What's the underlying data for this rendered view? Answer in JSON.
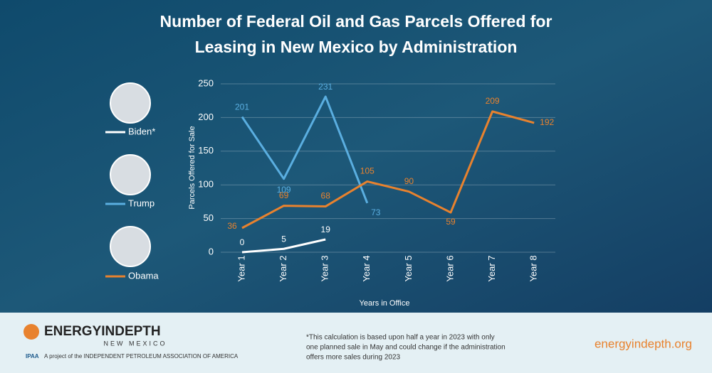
{
  "chart_data": {
    "type": "line",
    "title": "Number of Federal Oil and Gas Parcels Offered for Leasing in New Mexico by Administration",
    "x_label": "Years in Office",
    "y_label": "Parcels Offered for Sale",
    "categories": [
      "Year 1",
      "Year 2",
      "Year 3",
      "Year 4",
      "Year 5",
      "Year 6",
      "Year 7",
      "Year 8"
    ],
    "series": [
      {
        "name": "Biden*",
        "color": "#ffffff",
        "values": [
          0,
          5,
          19,
          null,
          null,
          null,
          null,
          null
        ]
      },
      {
        "name": "Trump",
        "color": "#5aaee0",
        "values": [
          201,
          109,
          231,
          73,
          null,
          null,
          null,
          null
        ]
      },
      {
        "name": "Obama",
        "color": "#e8822e",
        "values": [
          36,
          69,
          68,
          105,
          90,
          59,
          209,
          192
        ]
      }
    ],
    "ylim": [
      0,
      250
    ],
    "yticks": [
      0,
      50,
      100,
      150,
      200,
      250
    ],
    "grid": true
  },
  "footer": {
    "logo": "ENERGYINDEPTH",
    "logo_sub": "NEW MEXICO",
    "ipaa": "IPAA",
    "project": "A project of the INDEPENDENT PETROLEUM ASSOCIATION OF AMERICA",
    "note": [
      "*This calculation is based upon half a year in 2023 with only",
      "one planned sale in May and could change if the administration",
      "offers more sales during 2023"
    ],
    "url": "energyindepth.org"
  }
}
